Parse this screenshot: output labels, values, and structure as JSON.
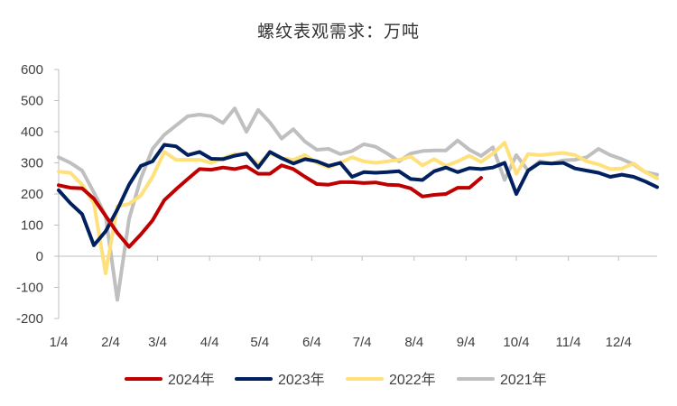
{
  "chart_data": {
    "type": "line",
    "title": "螺纹表观需求：万吨",
    "xlabel": "",
    "ylabel": "",
    "ylim": [
      -200,
      600
    ],
    "yticks": [
      -200,
      -100,
      0,
      100,
      200,
      300,
      400,
      500,
      600
    ],
    "xlim": [
      1,
      52
    ],
    "xticks": [
      {
        "label": "1/4",
        "week": 1
      },
      {
        "label": "2/4",
        "week": 5.43
      },
      {
        "label": "3/4",
        "week": 9.43
      },
      {
        "label": "4/4",
        "week": 13.86
      },
      {
        "label": "5/4",
        "week": 18.14
      },
      {
        "label": "6/4",
        "week": 22.57
      },
      {
        "label": "7/4",
        "week": 26.86
      },
      {
        "label": "8/4",
        "week": 31.29
      },
      {
        "label": "9/4",
        "week": 35.71
      },
      {
        "label": "10/4",
        "week": 40
      },
      {
        "label": "11/4",
        "week": 44.43
      },
      {
        "label": "12/4",
        "week": 48.71
      }
    ],
    "grid": false,
    "legend_position": "bottom",
    "series": [
      {
        "name": "2024年",
        "color": "#C00000",
        "values": [
          228,
          220,
          218,
          185,
          130,
          75,
          30,
          70,
          115,
          180,
          215,
          248,
          280,
          278,
          285,
          280,
          288,
          265,
          265,
          292,
          280,
          255,
          232,
          230,
          238,
          238,
          235,
          237,
          230,
          228,
          218,
          192,
          197,
          200,
          220,
          220,
          252
        ]
      },
      {
        "name": "2023年",
        "color": "#002060",
        "values": [
          212,
          170,
          135,
          35,
          80,
          150,
          230,
          290,
          305,
          358,
          353,
          325,
          335,
          313,
          312,
          323,
          330,
          285,
          335,
          315,
          298,
          312,
          305,
          290,
          300,
          255,
          270,
          268,
          270,
          273,
          248,
          245,
          273,
          285,
          270,
          283,
          280,
          285,
          300,
          200,
          275,
          300,
          298,
          300,
          282,
          275,
          268,
          255,
          262,
          255,
          240,
          222
        ]
      },
      {
        "name": "2022年",
        "color": "#FFE07A",
        "values": [
          272,
          268,
          230,
          170,
          -55,
          160,
          168,
          195,
          255,
          335,
          310,
          310,
          310,
          300,
          315,
          328,
          328,
          295,
          330,
          315,
          310,
          325,
          300,
          285,
          300,
          318,
          305,
          300,
          305,
          310,
          320,
          292,
          312,
          290,
          305,
          323,
          303,
          330,
          365,
          265,
          328,
          325,
          328,
          332,
          325,
          305,
          295,
          280,
          282,
          298,
          270,
          250
        ]
      },
      {
        "name": "2021年",
        "color": "#BFBFBF",
        "values": [
          318,
          300,
          275,
          205,
          130,
          -140,
          120,
          250,
          345,
          390,
          420,
          450,
          455,
          450,
          428,
          475,
          400,
          470,
          430,
          378,
          408,
          368,
          342,
          345,
          328,
          338,
          360,
          352,
          330,
          305,
          330,
          338,
          340,
          340,
          372,
          342,
          322,
          350,
          245,
          325,
          275,
          305,
          298,
          308,
          310,
          318,
          345,
          325,
          312,
          295,
          270,
          262
        ]
      }
    ]
  }
}
